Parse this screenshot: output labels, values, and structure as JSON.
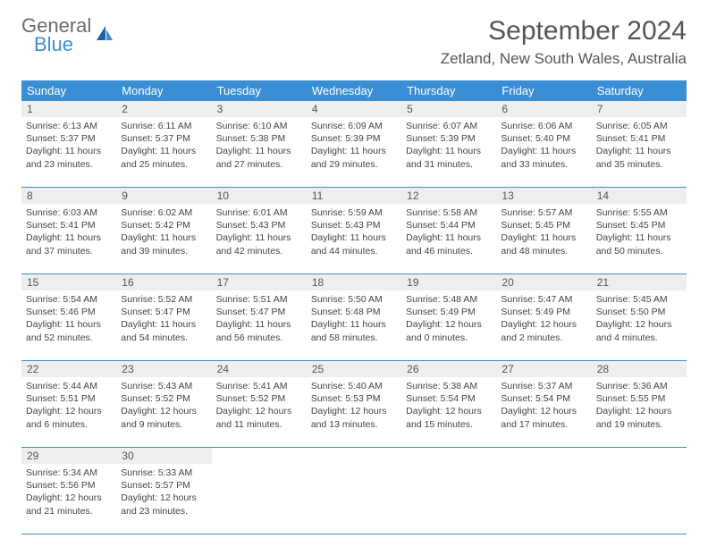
{
  "logo": {
    "general": "General",
    "blue": "Blue"
  },
  "title": "September 2024",
  "location": "Zetland, New South Wales, Australia",
  "dayNames": [
    "Sunday",
    "Monday",
    "Tuesday",
    "Wednesday",
    "Thursday",
    "Friday",
    "Saturday"
  ],
  "colors": {
    "header_bg": "#3a8fd4",
    "header_text": "#ffffff",
    "daynum_bg": "#eeeeee",
    "border": "#3a8fd4",
    "text": "#444444",
    "logo_gray": "#6b6b6b",
    "logo_blue": "#3a8fd4"
  },
  "weeks": [
    [
      {
        "n": "1",
        "sunrise": "Sunrise: 6:13 AM",
        "sunset": "Sunset: 5:37 PM",
        "day1": "Daylight: 11 hours",
        "day2": "and 23 minutes."
      },
      {
        "n": "2",
        "sunrise": "Sunrise: 6:11 AM",
        "sunset": "Sunset: 5:37 PM",
        "day1": "Daylight: 11 hours",
        "day2": "and 25 minutes."
      },
      {
        "n": "3",
        "sunrise": "Sunrise: 6:10 AM",
        "sunset": "Sunset: 5:38 PM",
        "day1": "Daylight: 11 hours",
        "day2": "and 27 minutes."
      },
      {
        "n": "4",
        "sunrise": "Sunrise: 6:09 AM",
        "sunset": "Sunset: 5:39 PM",
        "day1": "Daylight: 11 hours",
        "day2": "and 29 minutes."
      },
      {
        "n": "5",
        "sunrise": "Sunrise: 6:07 AM",
        "sunset": "Sunset: 5:39 PM",
        "day1": "Daylight: 11 hours",
        "day2": "and 31 minutes."
      },
      {
        "n": "6",
        "sunrise": "Sunrise: 6:06 AM",
        "sunset": "Sunset: 5:40 PM",
        "day1": "Daylight: 11 hours",
        "day2": "and 33 minutes."
      },
      {
        "n": "7",
        "sunrise": "Sunrise: 6:05 AM",
        "sunset": "Sunset: 5:41 PM",
        "day1": "Daylight: 11 hours",
        "day2": "and 35 minutes."
      }
    ],
    [
      {
        "n": "8",
        "sunrise": "Sunrise: 6:03 AM",
        "sunset": "Sunset: 5:41 PM",
        "day1": "Daylight: 11 hours",
        "day2": "and 37 minutes."
      },
      {
        "n": "9",
        "sunrise": "Sunrise: 6:02 AM",
        "sunset": "Sunset: 5:42 PM",
        "day1": "Daylight: 11 hours",
        "day2": "and 39 minutes."
      },
      {
        "n": "10",
        "sunrise": "Sunrise: 6:01 AM",
        "sunset": "Sunset: 5:43 PM",
        "day1": "Daylight: 11 hours",
        "day2": "and 42 minutes."
      },
      {
        "n": "11",
        "sunrise": "Sunrise: 5:59 AM",
        "sunset": "Sunset: 5:43 PM",
        "day1": "Daylight: 11 hours",
        "day2": "and 44 minutes."
      },
      {
        "n": "12",
        "sunrise": "Sunrise: 5:58 AM",
        "sunset": "Sunset: 5:44 PM",
        "day1": "Daylight: 11 hours",
        "day2": "and 46 minutes."
      },
      {
        "n": "13",
        "sunrise": "Sunrise: 5:57 AM",
        "sunset": "Sunset: 5:45 PM",
        "day1": "Daylight: 11 hours",
        "day2": "and 48 minutes."
      },
      {
        "n": "14",
        "sunrise": "Sunrise: 5:55 AM",
        "sunset": "Sunset: 5:45 PM",
        "day1": "Daylight: 11 hours",
        "day2": "and 50 minutes."
      }
    ],
    [
      {
        "n": "15",
        "sunrise": "Sunrise: 5:54 AM",
        "sunset": "Sunset: 5:46 PM",
        "day1": "Daylight: 11 hours",
        "day2": "and 52 minutes."
      },
      {
        "n": "16",
        "sunrise": "Sunrise: 5:52 AM",
        "sunset": "Sunset: 5:47 PM",
        "day1": "Daylight: 11 hours",
        "day2": "and 54 minutes."
      },
      {
        "n": "17",
        "sunrise": "Sunrise: 5:51 AM",
        "sunset": "Sunset: 5:47 PM",
        "day1": "Daylight: 11 hours",
        "day2": "and 56 minutes."
      },
      {
        "n": "18",
        "sunrise": "Sunrise: 5:50 AM",
        "sunset": "Sunset: 5:48 PM",
        "day1": "Daylight: 11 hours",
        "day2": "and 58 minutes."
      },
      {
        "n": "19",
        "sunrise": "Sunrise: 5:48 AM",
        "sunset": "Sunset: 5:49 PM",
        "day1": "Daylight: 12 hours",
        "day2": "and 0 minutes."
      },
      {
        "n": "20",
        "sunrise": "Sunrise: 5:47 AM",
        "sunset": "Sunset: 5:49 PM",
        "day1": "Daylight: 12 hours",
        "day2": "and 2 minutes."
      },
      {
        "n": "21",
        "sunrise": "Sunrise: 5:45 AM",
        "sunset": "Sunset: 5:50 PM",
        "day1": "Daylight: 12 hours",
        "day2": "and 4 minutes."
      }
    ],
    [
      {
        "n": "22",
        "sunrise": "Sunrise: 5:44 AM",
        "sunset": "Sunset: 5:51 PM",
        "day1": "Daylight: 12 hours",
        "day2": "and 6 minutes."
      },
      {
        "n": "23",
        "sunrise": "Sunrise: 5:43 AM",
        "sunset": "Sunset: 5:52 PM",
        "day1": "Daylight: 12 hours",
        "day2": "and 9 minutes."
      },
      {
        "n": "24",
        "sunrise": "Sunrise: 5:41 AM",
        "sunset": "Sunset: 5:52 PM",
        "day1": "Daylight: 12 hours",
        "day2": "and 11 minutes."
      },
      {
        "n": "25",
        "sunrise": "Sunrise: 5:40 AM",
        "sunset": "Sunset: 5:53 PM",
        "day1": "Daylight: 12 hours",
        "day2": "and 13 minutes."
      },
      {
        "n": "26",
        "sunrise": "Sunrise: 5:38 AM",
        "sunset": "Sunset: 5:54 PM",
        "day1": "Daylight: 12 hours",
        "day2": "and 15 minutes."
      },
      {
        "n": "27",
        "sunrise": "Sunrise: 5:37 AM",
        "sunset": "Sunset: 5:54 PM",
        "day1": "Daylight: 12 hours",
        "day2": "and 17 minutes."
      },
      {
        "n": "28",
        "sunrise": "Sunrise: 5:36 AM",
        "sunset": "Sunset: 5:55 PM",
        "day1": "Daylight: 12 hours",
        "day2": "and 19 minutes."
      }
    ],
    [
      {
        "n": "29",
        "sunrise": "Sunrise: 5:34 AM",
        "sunset": "Sunset: 5:56 PM",
        "day1": "Daylight: 12 hours",
        "day2": "and 21 minutes."
      },
      {
        "n": "30",
        "sunrise": "Sunrise: 5:33 AM",
        "sunset": "Sunset: 5:57 PM",
        "day1": "Daylight: 12 hours",
        "day2": "and 23 minutes."
      },
      null,
      null,
      null,
      null,
      null
    ]
  ]
}
